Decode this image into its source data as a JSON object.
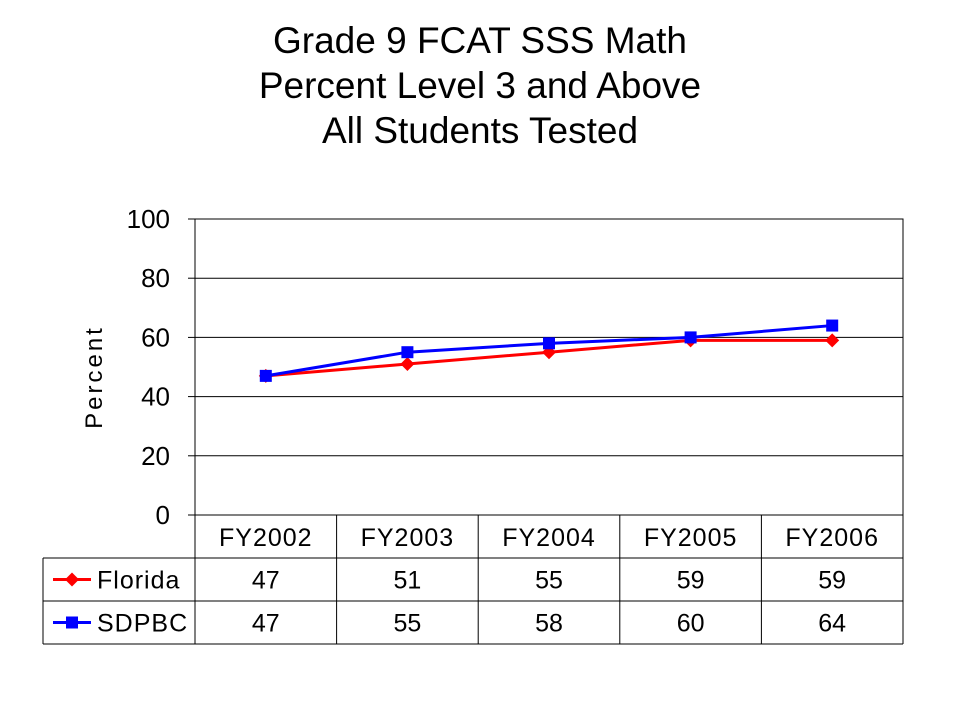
{
  "chart_data": {
    "type": "line",
    "title_lines": [
      "Grade 9 FCAT SSS Math",
      "Percent Level 3 and Above",
      "All Students Tested"
    ],
    "ylabel": "Percent",
    "ylim": [
      0,
      100
    ],
    "yticks": [
      0,
      20,
      40,
      60,
      80,
      100
    ],
    "categories": [
      "FY2002",
      "FY2003",
      "FY2004",
      "FY2005",
      "FY2006"
    ],
    "series": [
      {
        "name": "Florida",
        "values": [
          47,
          51,
          55,
          59,
          59
        ],
        "color": "#ff0000",
        "marker": "diamond"
      },
      {
        "name": "SDPBC",
        "values": [
          47,
          55,
          58,
          60,
          64
        ],
        "color": "#0000ff",
        "marker": "square"
      }
    ],
    "grid": "horizontal",
    "legend": "data-table"
  }
}
